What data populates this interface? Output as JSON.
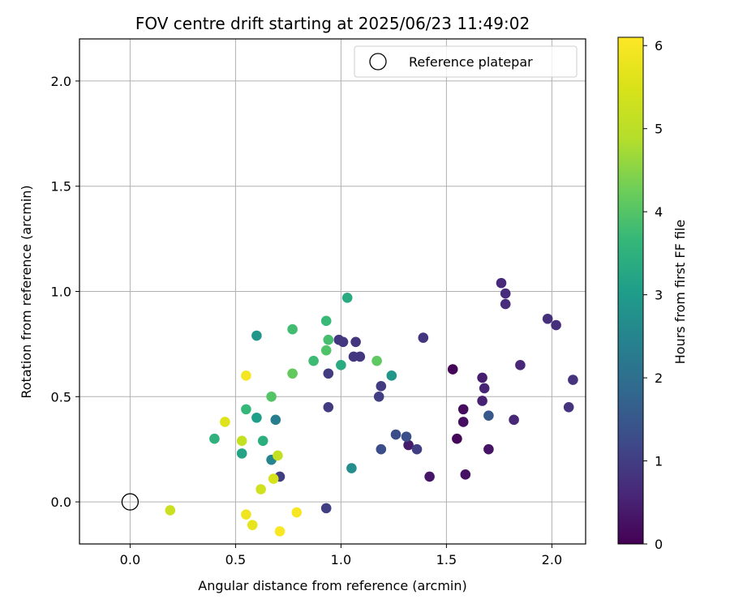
{
  "chart_data": {
    "type": "scatter",
    "title": "FOV centre drift starting at 2025/06/23 11:49:02",
    "xlabel": "Angular distance from reference (arcmin)",
    "ylabel": "Rotation from reference (arcmin)",
    "xlim": [
      -0.24,
      2.16
    ],
    "ylim": [
      -0.2,
      2.2
    ],
    "xticks": [
      0.0,
      0.5,
      1.0,
      1.5,
      2.0
    ],
    "xtick_labels": [
      "0.0",
      "0.5",
      "1.0",
      "1.5",
      "2.0"
    ],
    "yticks": [
      0.0,
      0.5,
      1.0,
      1.5,
      2.0
    ],
    "ytick_labels": [
      "0.0",
      "0.5",
      "1.0",
      "1.5",
      "2.0"
    ],
    "grid": true,
    "legend_position": "top-right",
    "reference_point": {
      "label": "Reference platepar",
      "x": 0.0,
      "y": 0.0,
      "marker": "open-circle"
    },
    "colorbar": {
      "label": "Hours from first FF file",
      "min": 0,
      "max": 6.1,
      "ticks": [
        0,
        1,
        2,
        3,
        4,
        5,
        6
      ],
      "tick_labels": [
        "0",
        "1",
        "2",
        "3",
        "4",
        "5",
        "6"
      ],
      "colormap": "viridis"
    },
    "points": [
      {
        "x": 1.53,
        "y": 0.63,
        "hours": 0.05
      },
      {
        "x": 1.55,
        "y": 0.3,
        "hours": 0.1
      },
      {
        "x": 1.58,
        "y": 0.44,
        "hours": 0.15
      },
      {
        "x": 1.58,
        "y": 0.38,
        "hours": 0.2
      },
      {
        "x": 1.59,
        "y": 0.13,
        "hours": 0.25
      },
      {
        "x": 1.7,
        "y": 0.25,
        "hours": 0.3
      },
      {
        "x": 1.42,
        "y": 0.12,
        "hours": 0.35
      },
      {
        "x": 1.32,
        "y": 0.27,
        "hours": 0.4
      },
      {
        "x": 1.67,
        "y": 0.59,
        "hours": 0.45
      },
      {
        "x": 1.67,
        "y": 0.48,
        "hours": 0.5
      },
      {
        "x": 1.68,
        "y": 0.54,
        "hours": 0.55
      },
      {
        "x": 1.82,
        "y": 0.39,
        "hours": 0.6
      },
      {
        "x": 1.85,
        "y": 0.65,
        "hours": 0.6
      },
      {
        "x": 1.76,
        "y": 1.04,
        "hours": 0.65
      },
      {
        "x": 1.78,
        "y": 0.99,
        "hours": 0.7
      },
      {
        "x": 1.78,
        "y": 0.94,
        "hours": 0.7
      },
      {
        "x": 1.98,
        "y": 0.87,
        "hours": 0.75
      },
      {
        "x": 2.02,
        "y": 0.84,
        "hours": 0.75
      },
      {
        "x": 2.1,
        "y": 0.58,
        "hours": 0.8
      },
      {
        "x": 2.08,
        "y": 0.45,
        "hours": 0.8
      },
      {
        "x": 1.39,
        "y": 0.78,
        "hours": 0.85
      },
      {
        "x": 1.07,
        "y": 0.76,
        "hours": 0.85
      },
      {
        "x": 0.99,
        "y": 0.77,
        "hours": 0.9
      },
      {
        "x": 1.01,
        "y": 0.76,
        "hours": 0.9
      },
      {
        "x": 1.06,
        "y": 0.69,
        "hours": 0.9
      },
      {
        "x": 1.09,
        "y": 0.69,
        "hours": 0.9
      },
      {
        "x": 0.94,
        "y": 0.61,
        "hours": 0.95
      },
      {
        "x": 0.94,
        "y": 0.45,
        "hours": 0.95
      },
      {
        "x": 1.19,
        "y": 0.55,
        "hours": 0.95
      },
      {
        "x": 1.18,
        "y": 0.5,
        "hours": 1.0
      },
      {
        "x": 1.36,
        "y": 0.25,
        "hours": 1.0
      },
      {
        "x": 0.71,
        "y": 0.12,
        "hours": 1.0
      },
      {
        "x": 0.93,
        "y": -0.03,
        "hours": 1.0
      },
      {
        "x": 1.19,
        "y": 0.25,
        "hours": 1.3
      },
      {
        "x": 1.26,
        "y": 0.32,
        "hours": 1.3
      },
      {
        "x": 1.31,
        "y": 0.31,
        "hours": 1.35
      },
      {
        "x": 1.7,
        "y": 0.41,
        "hours": 1.5
      },
      {
        "x": 0.69,
        "y": 0.39,
        "hours": 2.35
      },
      {
        "x": 0.67,
        "y": 0.2,
        "hours": 2.5
      },
      {
        "x": 1.05,
        "y": 0.16,
        "hours": 2.7
      },
      {
        "x": 1.24,
        "y": 0.6,
        "hours": 2.9
      },
      {
        "x": 0.6,
        "y": 0.79,
        "hours": 2.9
      },
      {
        "x": 0.6,
        "y": 0.4,
        "hours": 3.05
      },
      {
        "x": 0.53,
        "y": 0.23,
        "hours": 3.2
      },
      {
        "x": 1.03,
        "y": 0.97,
        "hours": 3.35
      },
      {
        "x": 1.0,
        "y": 0.65,
        "hours": 3.35
      },
      {
        "x": 0.63,
        "y": 0.29,
        "hours": 3.45
      },
      {
        "x": 0.4,
        "y": 0.3,
        "hours": 3.5
      },
      {
        "x": 0.55,
        "y": 0.44,
        "hours": 3.65
      },
      {
        "x": 0.93,
        "y": 0.86,
        "hours": 3.7
      },
      {
        "x": 0.87,
        "y": 0.67,
        "hours": 3.75
      },
      {
        "x": 0.77,
        "y": 0.82,
        "hours": 3.8
      },
      {
        "x": 0.94,
        "y": 0.77,
        "hours": 3.85
      },
      {
        "x": 0.93,
        "y": 0.72,
        "hours": 3.95
      },
      {
        "x": 0.67,
        "y": 0.5,
        "hours": 4.0
      },
      {
        "x": 1.17,
        "y": 0.67,
        "hours": 4.1
      },
      {
        "x": 0.77,
        "y": 0.61,
        "hours": 4.15
      },
      {
        "x": 0.53,
        "y": 0.29,
        "hours": 5.15
      },
      {
        "x": 0.7,
        "y": 0.22,
        "hours": 5.15
      },
      {
        "x": 0.19,
        "y": -0.04,
        "hours": 5.25
      },
      {
        "x": 0.62,
        "y": 0.06,
        "hours": 5.35
      },
      {
        "x": 0.68,
        "y": 0.11,
        "hours": 5.45
      },
      {
        "x": 0.45,
        "y": 0.38,
        "hours": 5.6
      },
      {
        "x": 0.58,
        "y": -0.11,
        "hours": 5.7
      },
      {
        "x": 0.55,
        "y": -0.06,
        "hours": 5.85
      },
      {
        "x": 0.55,
        "y": 0.6,
        "hours": 5.95
      },
      {
        "x": 0.79,
        "y": -0.05,
        "hours": 6.0
      },
      {
        "x": 0.71,
        "y": -0.14,
        "hours": 6.05
      }
    ]
  }
}
